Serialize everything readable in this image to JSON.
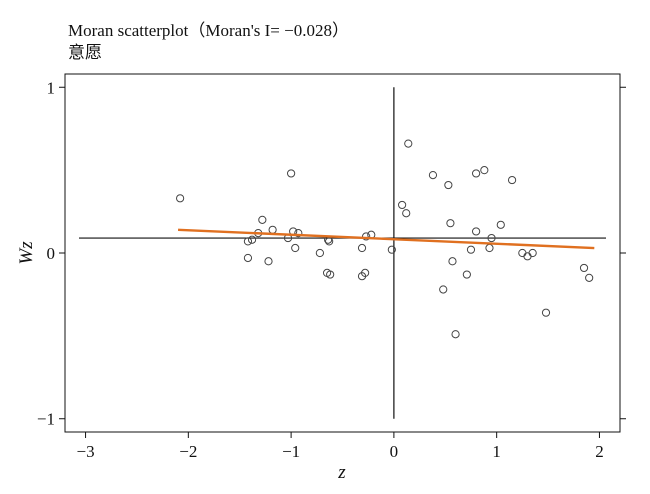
{
  "chart_data": {
    "type": "scatter",
    "title": "Moran scatterplot（Moran's I= −0.028）",
    "subtitle": "意愿",
    "xlabel": "z",
    "ylabel": "Wz",
    "xlim": [
      -3.2,
      2.2
    ],
    "ylim": [
      -1.08,
      1.08
    ],
    "x_ticks": [
      -3,
      -2,
      -1,
      0,
      1,
      2
    ],
    "x_tick_labels": [
      "−3",
      "−2",
      "−1",
      "0",
      "1",
      "2"
    ],
    "y_ticks": [
      -1,
      0,
      1
    ],
    "y_tick_labels": [
      "−1",
      "0",
      "1"
    ],
    "mean_z": 0.0,
    "mean_wz": 0.09,
    "fit_line": {
      "x": [
        -2.1,
        1.95
      ],
      "y": [
        0.14,
        0.03
      ],
      "color": "#e07020"
    },
    "point_color": "#444444",
    "points": [
      [
        -2.08,
        0.33
      ],
      [
        -1.42,
        0.07
      ],
      [
        -1.42,
        -0.03
      ],
      [
        -1.38,
        0.08
      ],
      [
        -1.32,
        0.12
      ],
      [
        -1.28,
        0.2
      ],
      [
        -1.22,
        -0.05
      ],
      [
        -1.18,
        0.14
      ],
      [
        -1.03,
        0.09
      ],
      [
        -1.0,
        0.48
      ],
      [
        -0.98,
        0.13
      ],
      [
        -0.96,
        0.03
      ],
      [
        -0.93,
        0.12
      ],
      [
        -0.72,
        0.0
      ],
      [
        -0.65,
        -0.12
      ],
      [
        -0.64,
        0.08
      ],
      [
        -0.63,
        0.07
      ],
      [
        -0.62,
        -0.13
      ],
      [
        -0.31,
        -0.14
      ],
      [
        -0.31,
        0.03
      ],
      [
        -0.28,
        -0.12
      ],
      [
        -0.27,
        0.1
      ],
      [
        -0.22,
        0.11
      ],
      [
        -0.02,
        0.02
      ],
      [
        0.08,
        0.29
      ],
      [
        0.12,
        0.24
      ],
      [
        0.14,
        0.66
      ],
      [
        0.38,
        0.47
      ],
      [
        0.48,
        -0.22
      ],
      [
        0.53,
        0.41
      ],
      [
        0.55,
        0.18
      ],
      [
        0.57,
        -0.05
      ],
      [
        0.6,
        -0.49
      ],
      [
        0.71,
        -0.13
      ],
      [
        0.75,
        0.02
      ],
      [
        0.8,
        0.13
      ],
      [
        0.8,
        0.48
      ],
      [
        0.88,
        0.5
      ],
      [
        0.93,
        0.03
      ],
      [
        0.95,
        0.09
      ],
      [
        1.04,
        0.17
      ],
      [
        1.15,
        0.44
      ],
      [
        1.25,
        0.0
      ],
      [
        1.3,
        -0.02
      ],
      [
        1.35,
        0.0
      ],
      [
        1.48,
        -0.36
      ],
      [
        1.85,
        -0.09
      ],
      [
        1.9,
        -0.15
      ]
    ]
  }
}
